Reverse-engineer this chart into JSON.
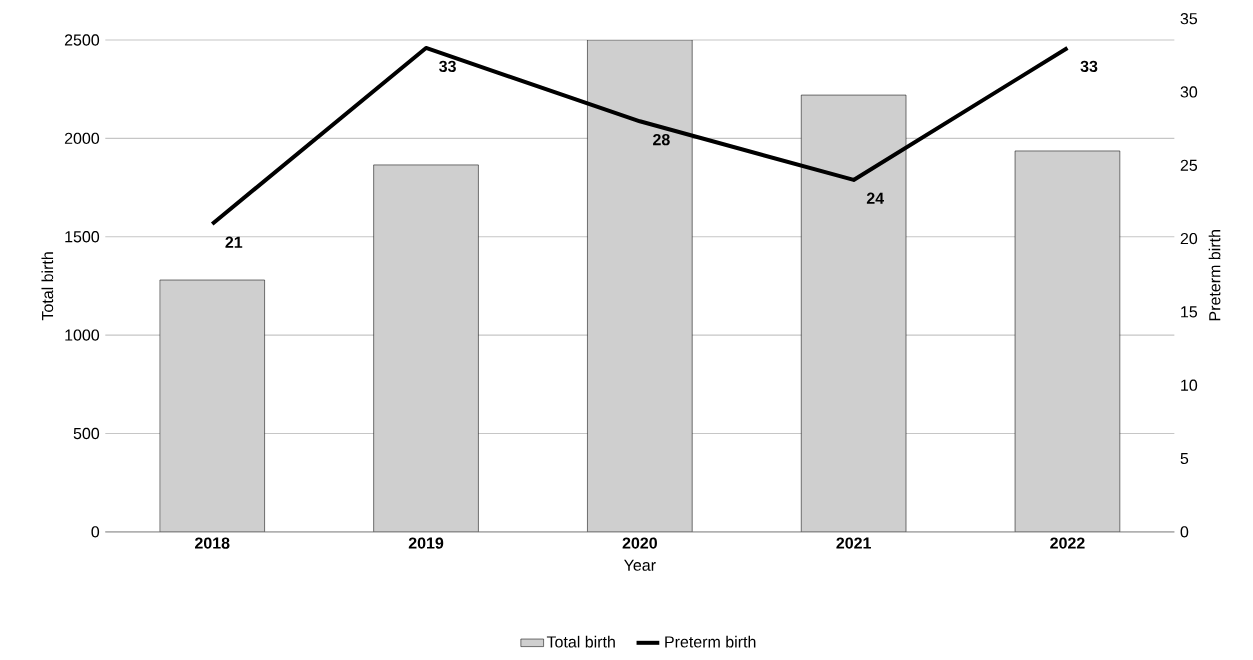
{
  "chart_data": {
    "type": "bar",
    "xlabel": "Year",
    "ylabel": "Total  birth",
    "y2label": "Preterm birth",
    "categories": [
      "2018",
      "2019",
      "2020",
      "2021",
      "2022"
    ],
    "series": [
      {
        "name": "Total birth",
        "color": "#cfcfcf",
        "values": [
          1280,
          1865,
          2500,
          2220,
          1936
        ]
      },
      {
        "name": "Preterm birth",
        "type": "line",
        "axis": "y2",
        "color": "#000000",
        "values": [
          21,
          33,
          28,
          24,
          33
        ],
        "value_labels": [
          "21",
          "33",
          "28",
          "24",
          "33"
        ]
      }
    ],
    "ylim": [
      0,
      2500
    ],
    "yticks": [
      0,
      500,
      1000,
      1500,
      2000,
      2500
    ],
    "y2lim": [
      0,
      35
    ],
    "y2ticks": [
      0,
      5,
      10,
      15,
      20,
      25,
      30,
      35
    ],
    "grid": "y",
    "legend": "bottom"
  }
}
